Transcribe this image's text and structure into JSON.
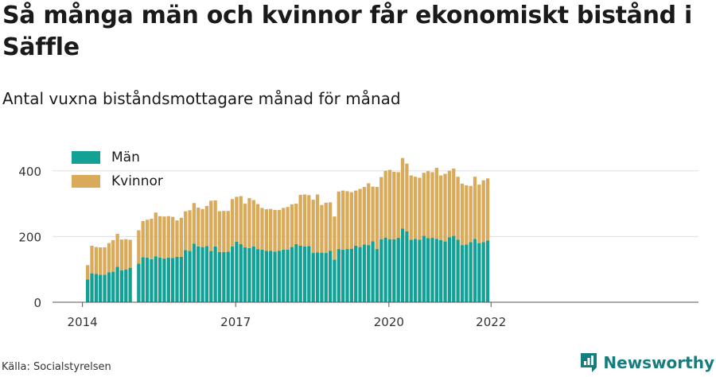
{
  "title": "Så många män och kvinnor får ekonomiskt bistånd i Säffle",
  "subtitle": "Antal vuxna biståndsmottagare månad för månad",
  "source": "Källa: Socialstyrelsen",
  "brand": "Newsworthy",
  "colors": {
    "man": "#13a095",
    "kvinnor": "#d9aa59",
    "brand": "#167d7f"
  },
  "chart_data": {
    "type": "bar",
    "stacked": true,
    "series": [
      {
        "name": "Män",
        "color": "#13a095",
        "values": [
          69,
          88,
          86,
          84,
          84,
          91,
          93,
          108,
          97,
          100,
          105,
          null,
          118,
          137,
          136,
          131,
          140,
          136,
          133,
          136,
          135,
          138,
          138,
          159,
          156,
          178,
          170,
          168,
          171,
          156,
          170,
          153,
          153,
          154,
          170,
          184,
          177,
          167,
          165,
          170,
          161,
          160,
          157,
          157,
          154,
          157,
          160,
          160,
          168,
          177,
          172,
          170,
          171,
          150,
          152,
          151,
          150,
          157,
          130,
          162,
          160,
          162,
          163,
          172,
          168,
          176,
          174,
          186,
          162,
          192,
          197,
          192,
          192,
          196,
          224,
          216,
          190,
          193,
          190,
          202,
          195,
          196,
          193,
          189,
          185,
          198,
          202,
          190,
          174,
          176,
          183,
          193,
          180,
          183,
          188
        ]
      },
      {
        "name": "Kvinnor",
        "color": "#d9aa59",
        "values": [
          44,
          84,
          82,
          83,
          83,
          89,
          96,
          100,
          94,
          92,
          85,
          null,
          101,
          110,
          115,
          123,
          133,
          126,
          128,
          126,
          125,
          111,
          119,
          118,
          124,
          124,
          118,
          116,
          122,
          153,
          140,
          124,
          125,
          124,
          144,
          137,
          146,
          133,
          152,
          141,
          138,
          127,
          126,
          127,
          127,
          124,
          127,
          130,
          130,
          123,
          155,
          158,
          155,
          162,
          176,
          145,
          153,
          147,
          131,
          175,
          180,
          176,
          172,
          168,
          177,
          175,
          188,
          166,
          189,
          189,
          203,
          211,
          205,
          200,
          215,
          206,
          196,
          189,
          189,
          192,
          204,
          200,
          216,
          197,
          206,
          202,
          205,
          192,
          187,
          180,
          171,
          189,
          178,
          188,
          189
        ]
      }
    ],
    "x": [
      "2014-02",
      "2014-03",
      "2014-04",
      "2014-05",
      "2014-06",
      "2014-07",
      "2014-08",
      "2014-09",
      "2014-10",
      "2014-11",
      "2014-12",
      "2015-01",
      "2015-02",
      "2015-03",
      "2015-04",
      "2015-05",
      "2015-06",
      "2015-07",
      "2015-08",
      "2015-09",
      "2015-10",
      "2015-11",
      "2015-12",
      "2016-01",
      "2016-02",
      "2016-03",
      "2016-04",
      "2016-05",
      "2016-06",
      "2016-07",
      "2016-08",
      "2016-09",
      "2016-10",
      "2016-11",
      "2016-12",
      "2017-01",
      "2017-02",
      "2017-03",
      "2017-04",
      "2017-05",
      "2017-06",
      "2017-07",
      "2017-08",
      "2017-09",
      "2017-10",
      "2017-11",
      "2017-12",
      "2018-01",
      "2018-02",
      "2018-03",
      "2018-04",
      "2018-05",
      "2018-06",
      "2018-07",
      "2018-08",
      "2018-09",
      "2018-10",
      "2018-11",
      "2018-12",
      "2019-01",
      "2019-02",
      "2019-03",
      "2019-04",
      "2019-05",
      "2019-06",
      "2019-07",
      "2019-08",
      "2019-09",
      "2019-10",
      "2019-11",
      "2019-12",
      "2020-01",
      "2020-02",
      "2020-03",
      "2020-04",
      "2020-05",
      "2020-06",
      "2020-07",
      "2020-08",
      "2020-09",
      "2020-10",
      "2020-11",
      "2020-12",
      "2021-01",
      "2021-02",
      "2021-03",
      "2021-04",
      "2021-05",
      "2021-06",
      "2021-07",
      "2021-08",
      "2021-09",
      "2021-10",
      "2021-11",
      "2021-12"
    ],
    "x_ticks": [
      "2014",
      "2017",
      "2020",
      "2022"
    ],
    "y_ticks": [
      0,
      200,
      400
    ],
    "ylim": [
      0,
      460
    ],
    "grid": true,
    "legend": "top-left"
  }
}
